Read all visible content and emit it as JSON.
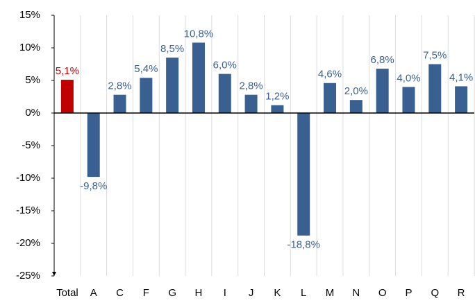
{
  "chart_data": {
    "type": "bar",
    "categories": [
      "Total",
      "A",
      "C",
      "F",
      "G",
      "H",
      "I",
      "J",
      "K",
      "L",
      "M",
      "N",
      "O",
      "P",
      "Q",
      "R"
    ],
    "values": [
      5.1,
      -9.8,
      2.8,
      5.4,
      8.5,
      10.8,
      6.0,
      2.8,
      1.2,
      -18.8,
      4.6,
      2.0,
      6.8,
      4.0,
      7.5,
      4.1
    ],
    "value_labels": [
      "5,1%",
      "-9,8%",
      "2,8%",
      "5,4%",
      "8,5%",
      "10,8%",
      "6,0%",
      "2,8%",
      "1,2%",
      "-18,8%",
      "4,6%",
      "2,0%",
      "6,8%",
      "4,0%",
      "7,5%",
      "4,1%"
    ],
    "colors": [
      "#c00000",
      "#3a5f91",
      "#3a5f91",
      "#3a5f91",
      "#3a5f91",
      "#3a5f91",
      "#3a5f91",
      "#3a5f91",
      "#3a5f91",
      "#3a5f91",
      "#3a5f91",
      "#3a5f91",
      "#3a5f91",
      "#3a5f91",
      "#3a5f91",
      "#3a5f91"
    ],
    "ylim": [
      -25,
      15
    ],
    "yticks": [
      {
        "value": -25,
        "label": "-25%"
      },
      {
        "value": -20,
        "label": "-20%"
      },
      {
        "value": -15,
        "label": "-15%"
      },
      {
        "value": -10,
        "label": "-10%"
      },
      {
        "value": -5,
        "label": "-5%"
      },
      {
        "value": 0,
        "label": "0%"
      },
      {
        "value": 5,
        "label": "5%"
      },
      {
        "value": 10,
        "label": "10%"
      },
      {
        "value": 15,
        "label": "15%"
      }
    ],
    "grid": "vertical"
  }
}
